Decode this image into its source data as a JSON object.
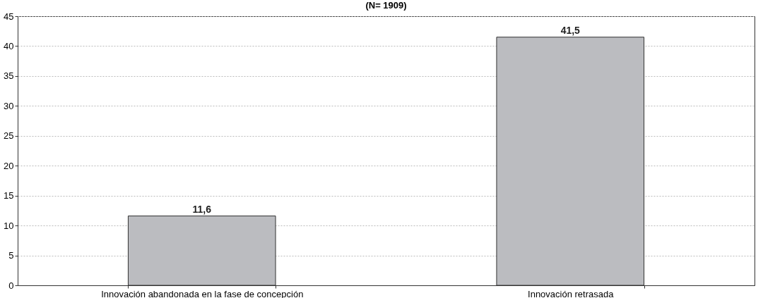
{
  "chart_data": {
    "type": "bar",
    "title": "(N= 1909)",
    "categories": [
      "Innovación abandonada en la fase de concepción",
      "Innovación retrasada"
    ],
    "values": [
      11.6,
      41.5
    ],
    "value_labels": [
      "11,6",
      "41,5"
    ],
    "color": "#bbbcc0",
    "ylim": [
      0,
      45
    ],
    "yticks": [
      0,
      5,
      10,
      15,
      20,
      25,
      30,
      35,
      40,
      45
    ],
    "grid": "y"
  }
}
